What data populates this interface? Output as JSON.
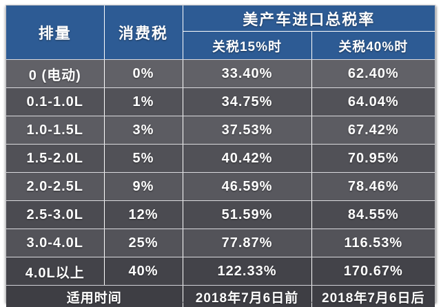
{
  "chart_data": {
    "type": "table",
    "title": "美产车进口总税率",
    "header": {
      "displacement": "排量",
      "consumption_tax": "消费税",
      "total_rate_title": "美产车进口总税率",
      "tariff_15": "关税15%时",
      "tariff_40": "关税40%时"
    },
    "columns": [
      "排量",
      "消费税",
      "关税15%时",
      "关税40%时"
    ],
    "rows": [
      {
        "displacement": "0 (电动)",
        "consumption_tax": "0%",
        "rate_tariff_15": "33.40%",
        "rate_tariff_40": "62.40%"
      },
      {
        "displacement": "0.1-1.0L",
        "consumption_tax": "1%",
        "rate_tariff_15": "34.75%",
        "rate_tariff_40": "64.04%"
      },
      {
        "displacement": "1.0-1.5L",
        "consumption_tax": "3%",
        "rate_tariff_15": "37.53%",
        "rate_tariff_40": "67.42%"
      },
      {
        "displacement": "1.5-2.0L",
        "consumption_tax": "5%",
        "rate_tariff_15": "40.42%",
        "rate_tariff_40": "70.95%"
      },
      {
        "displacement": "2.0-2.5L",
        "consumption_tax": "9%",
        "rate_tariff_15": "46.59%",
        "rate_tariff_40": "78.46%"
      },
      {
        "displacement": "2.5-3.0L",
        "consumption_tax": "12%",
        "rate_tariff_15": "51.59%",
        "rate_tariff_40": "84.55%"
      },
      {
        "displacement": "3.0-4.0L",
        "consumption_tax": "25%",
        "rate_tariff_15": "77.87%",
        "rate_tariff_40": "116.53%"
      },
      {
        "displacement": "4.0L以上",
        "consumption_tax": "40%",
        "rate_tariff_15": "122.33%",
        "rate_tariff_40": "170.67%"
      }
    ],
    "footer": {
      "label": "适用时间",
      "tariff_15_period": "2018年7月6日前",
      "tariff_40_period": "2018年7月6日后"
    },
    "colors": {
      "header_blue": "#2d5b94",
      "row_light": "#5c5c62",
      "row_dark": "#4b4b51",
      "footer_bg": "#3e3e44",
      "text": "#ffffff",
      "divider_dashed": "#ffffff"
    }
  }
}
